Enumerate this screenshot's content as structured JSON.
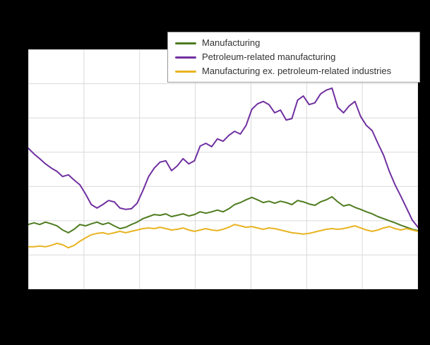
{
  "colors": {
    "page_background": "#000000",
    "plot_background": "#ffffff",
    "grid": "#d9d9d9",
    "legend_border": "#999999",
    "legend_text": "#333333"
  },
  "legend": {
    "items": [
      {
        "label": "Manufacturing",
        "color": "#4e7c1f"
      },
      {
        "label": "Petroleum-related manufacturing",
        "color": "#7030a0"
      },
      {
        "label": "Manufacturing ex. petroleum-related industries",
        "color": "#e8b422"
      }
    ]
  },
  "chart_data": {
    "type": "line",
    "title": "",
    "xlabel": "",
    "ylabel": "",
    "xlim": [
      0,
      68
    ],
    "ylim": [
      0,
      70
    ],
    "grid": {
      "show": true,
      "y_step": 10,
      "x_divisions": 7
    },
    "legend_position": "top-center",
    "axis_tick_labels_visible": false,
    "x": [
      0,
      1,
      2,
      3,
      4,
      5,
      6,
      7,
      8,
      9,
      10,
      11,
      12,
      13,
      14,
      15,
      16,
      17,
      18,
      19,
      20,
      21,
      22,
      23,
      24,
      25,
      26,
      27,
      28,
      29,
      30,
      31,
      32,
      33,
      34,
      35,
      36,
      37,
      38,
      39,
      40,
      41,
      42,
      43,
      44,
      45,
      46,
      47,
      48,
      49,
      50,
      51,
      52,
      53,
      54,
      55,
      56,
      57,
      58,
      59,
      60,
      61,
      62,
      63,
      64,
      65,
      66,
      67,
      68
    ],
    "series": [
      {
        "name": "Manufacturing",
        "color": "#4e7c1f",
        "values": [
          18.9,
          19.4,
          18.9,
          19.6,
          19.1,
          18.5,
          17.3,
          16.5,
          17.5,
          18.9,
          18.5,
          19.1,
          19.6,
          18.9,
          19.4,
          18.5,
          17.7,
          18.1,
          18.9,
          19.6,
          20.6,
          21.2,
          21.8,
          21.6,
          22.0,
          21.2,
          21.6,
          22.0,
          21.4,
          21.8,
          22.6,
          22.2,
          22.6,
          23.1,
          22.6,
          23.5,
          24.7,
          25.3,
          26.1,
          26.8,
          26.1,
          25.3,
          25.7,
          25.1,
          25.7,
          25.3,
          24.7,
          25.9,
          25.5,
          24.9,
          24.5,
          25.5,
          26.1,
          27.0,
          25.5,
          24.3,
          24.7,
          23.9,
          23.3,
          22.6,
          22.0,
          21.2,
          20.6,
          20.0,
          19.4,
          18.7,
          18.1,
          17.5,
          17.1
        ]
      },
      {
        "name": "Petroleum-related manufacturing",
        "color": "#7030a0",
        "values": [
          41.2,
          39.5,
          38.1,
          36.6,
          35.4,
          34.4,
          32.9,
          33.4,
          31.9,
          30.5,
          27.8,
          24.7,
          23.7,
          24.7,
          25.9,
          25.5,
          23.7,
          23.3,
          23.5,
          25.1,
          28.8,
          32.9,
          35.4,
          37.1,
          37.5,
          34.6,
          36.0,
          38.1,
          36.6,
          37.5,
          41.8,
          42.6,
          41.6,
          43.9,
          43.2,
          44.9,
          46.1,
          45.3,
          47.8,
          52.5,
          54.1,
          54.8,
          53.9,
          51.5,
          52.3,
          49.4,
          49.8,
          55.2,
          56.4,
          53.9,
          54.4,
          57.0,
          58.1,
          58.7,
          53.1,
          51.5,
          53.5,
          54.8,
          50.4,
          47.8,
          46.3,
          42.6,
          39.1,
          34.4,
          30.5,
          27.2,
          23.7,
          20.2,
          18.1
        ]
      },
      {
        "name": "Manufacturing ex. petroleum-related industries",
        "color": "#e8b422",
        "values": [
          12.4,
          12.4,
          12.6,
          12.4,
          12.8,
          13.4,
          13.0,
          12.1,
          12.8,
          14.0,
          15.0,
          15.9,
          16.3,
          16.5,
          16.1,
          16.5,
          16.9,
          16.5,
          16.9,
          17.3,
          17.7,
          17.9,
          17.7,
          18.1,
          17.7,
          17.3,
          17.5,
          17.9,
          17.3,
          16.9,
          17.3,
          17.7,
          17.3,
          17.1,
          17.5,
          18.1,
          18.9,
          18.5,
          18.1,
          18.3,
          17.9,
          17.5,
          17.9,
          17.7,
          17.3,
          16.9,
          16.5,
          16.3,
          16.1,
          16.3,
          16.7,
          17.1,
          17.5,
          17.7,
          17.5,
          17.7,
          18.1,
          18.5,
          17.9,
          17.3,
          16.9,
          17.3,
          17.9,
          18.3,
          17.7,
          17.3,
          17.7,
          17.3,
          16.9
        ]
      }
    ]
  }
}
